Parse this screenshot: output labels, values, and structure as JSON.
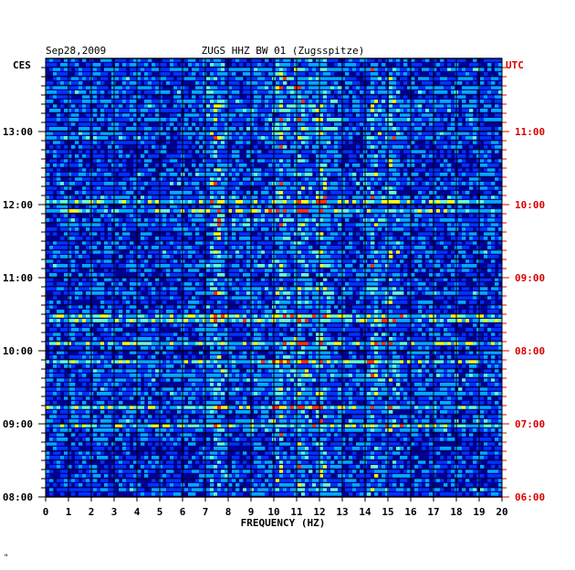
{
  "chart_data": {
    "type": "heatmap",
    "date": "Sep28,2009",
    "title": "ZUGS HHZ BW 01 (Zugsspitze)",
    "left_timezone": "CES",
    "right_timezone": "UTC",
    "xlabel": "FREQUENCY (HZ)",
    "xlim": [
      0,
      20
    ],
    "x_ticks": [
      "0",
      "1",
      "2",
      "3",
      "4",
      "5",
      "6",
      "7",
      "8",
      "9",
      "10",
      "11",
      "12",
      "13",
      "14",
      "15",
      "16",
      "17",
      "18",
      "19",
      "20"
    ],
    "left_time_ticks": [
      "08:00",
      "09:00",
      "10:00",
      "11:00",
      "12:00",
      "13:00"
    ],
    "right_time_ticks": [
      "06:00",
      "07:00",
      "08:00",
      "09:00",
      "10:00",
      "11:00"
    ],
    "time_range_hours_local": [
      8.0,
      14.0
    ],
    "bright_frequency_bands_hz": [
      7.5,
      10.3,
      11.2,
      12.1,
      14.4,
      15.2
    ],
    "grid": true,
    "colormap": [
      "#0000a0",
      "#0033ff",
      "#00aaff",
      "#66ffcc",
      "#ffff00",
      "#ff3300"
    ],
    "footnote_mark": "\""
  }
}
